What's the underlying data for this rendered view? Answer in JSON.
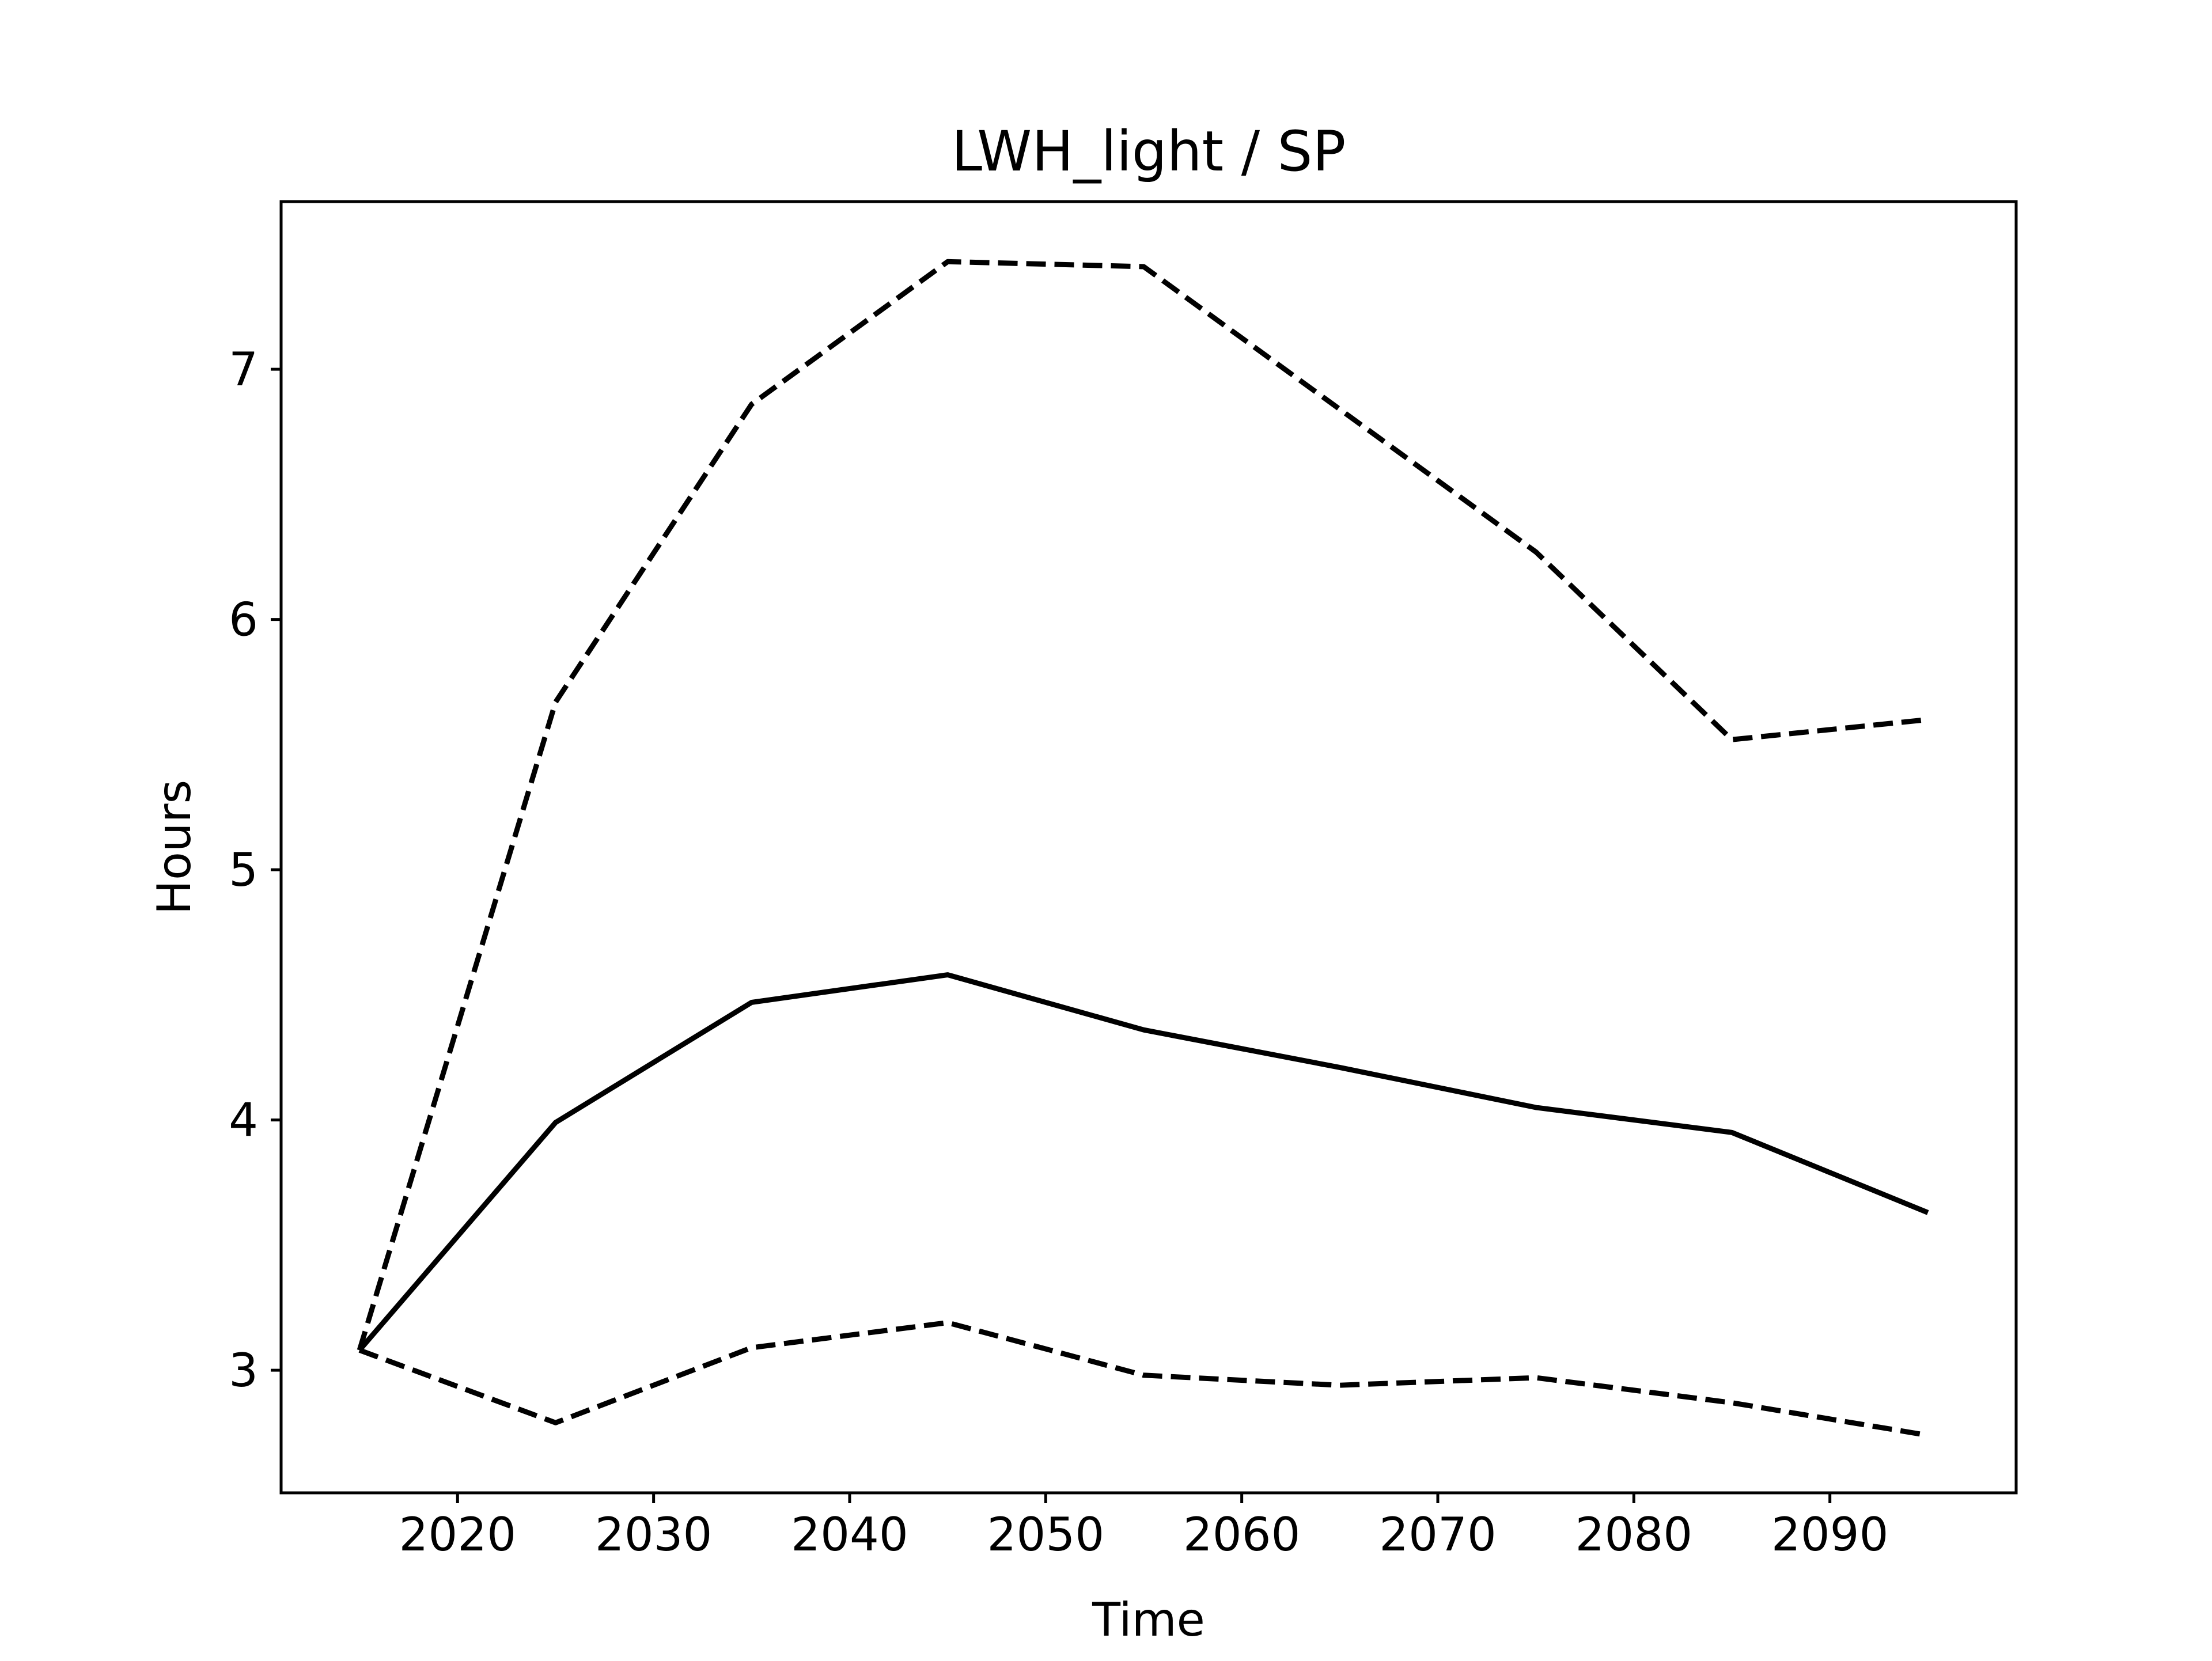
{
  "chart_data": {
    "type": "line",
    "title": "LWH_light / SP",
    "xlabel": "Time",
    "ylabel": "Hours",
    "x": [
      2015,
      2025,
      2035,
      2045,
      2055,
      2065,
      2075,
      2085,
      2095
    ],
    "series": [
      {
        "style": "solid",
        "color": "#000000",
        "values": [
          3.08,
          3.99,
          4.47,
          4.58,
          4.36,
          4.21,
          4.05,
          3.95,
          3.63
        ]
      },
      {
        "style": "dashed",
        "color": "#000000",
        "values": [
          3.08,
          5.67,
          6.86,
          7.43,
          7.41,
          6.84,
          6.27,
          5.52,
          5.6
        ]
      },
      {
        "style": "dashed",
        "color": "#000000",
        "values": [
          3.08,
          2.79,
          3.09,
          3.19,
          2.98,
          2.94,
          2.97,
          2.87,
          2.74
        ]
      }
    ],
    "xlim": [
      2011,
      2099.5
    ],
    "ylim": [
      2.51,
      7.67
    ],
    "xticks": [
      2020,
      2030,
      2040,
      2050,
      2060,
      2070,
      2080,
      2090
    ],
    "xtick_labels": [
      "2020",
      "2030",
      "2040",
      "2050",
      "2060",
      "2070",
      "2080",
      "2090"
    ],
    "yticks": [
      3,
      4,
      5,
      6,
      7
    ],
    "ytick_labels": [
      "3",
      "4",
      "5",
      "6",
      "7"
    ],
    "grid": false,
    "legend": "none"
  }
}
